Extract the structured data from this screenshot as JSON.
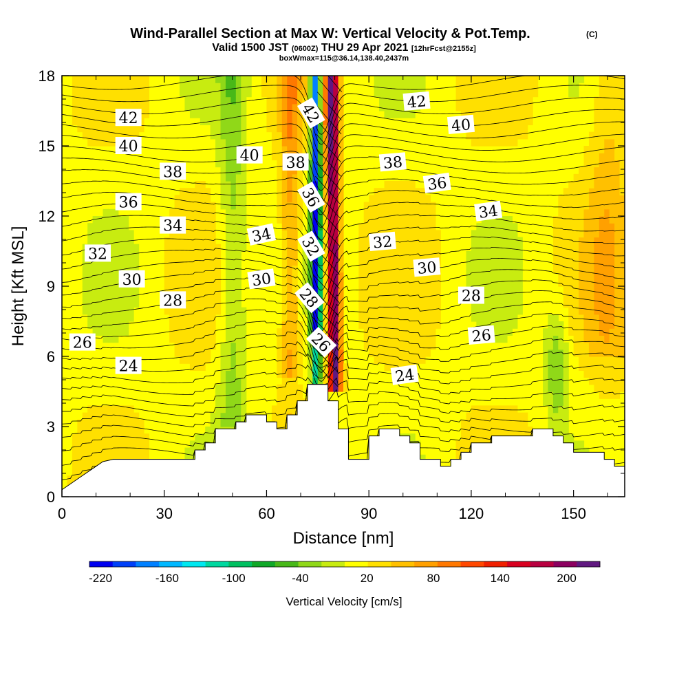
{
  "chart_data": {
    "type": "heatmap",
    "title": "Wind-Parallel Section at Max W: Vertical Velocity & Pot.Temp.",
    "title_mark": "(C)",
    "subtitle": {
      "valid_prefix": "Valid 1500 JST",
      "utc": "(0600Z)",
      "valid_suffix": "THU 29 Apr 2021",
      "forecast": "[12hrFcst@2155z]"
    },
    "subtitle2": "boxWmax=115@36.14,138.40,2437m",
    "xlabel": "Distance [nm]",
    "ylabel": "Height [Kft MSL]",
    "xlim": [
      0,
      165
    ],
    "ylim": [
      0,
      18
    ],
    "xticks": [
      "0",
      "30",
      "60",
      "90",
      "120",
      "150"
    ],
    "yticks": [
      "0",
      "3",
      "6",
      "9",
      "12",
      "15",
      "18"
    ],
    "colorbar": {
      "label": "Vertical Velocity [cm/s]",
      "tick_labels": [
        "-220",
        "-160",
        "-100",
        "-40",
        "20",
        "80",
        "140",
        "200"
      ],
      "tick_values": [
        -220,
        -160,
        -100,
        -40,
        20,
        80,
        140,
        200
      ],
      "range": [
        -230,
        230
      ],
      "colors": [
        "#0000f0",
        "#0040f8",
        "#0080ff",
        "#00b8ff",
        "#00e8f0",
        "#00d8a0",
        "#00c060",
        "#10a828",
        "#48b818",
        "#90d818",
        "#c8ec10",
        "#ffff00",
        "#ffe000",
        "#ffc000",
        "#ffa000",
        "#ff7800",
        "#ff4800",
        "#f02000",
        "#d80020",
        "#b80040",
        "#8c0060",
        "#601880"
      ]
    },
    "potential_temperature_isentropes": [
      24,
      26,
      28,
      30,
      32,
      34,
      36,
      38,
      40,
      42
    ],
    "contour_labels": [
      {
        "text": "42",
        "x": 19.5,
        "y": 16.2,
        "angle": 0
      },
      {
        "text": "40",
        "x": 19.5,
        "y": 15.0,
        "angle": 0
      },
      {
        "text": "38",
        "x": 32.5,
        "y": 13.9,
        "angle": 0
      },
      {
        "text": "36",
        "x": 19.5,
        "y": 12.6,
        "angle": 0
      },
      {
        "text": "34",
        "x": 32.5,
        "y": 11.6,
        "angle": 0
      },
      {
        "text": "32",
        "x": 10.5,
        "y": 10.4,
        "angle": 0
      },
      {
        "text": "30",
        "x": 20.5,
        "y": 9.3,
        "angle": 0
      },
      {
        "text": "28",
        "x": 32.5,
        "y": 8.4,
        "angle": 0
      },
      {
        "text": "26",
        "x": 6.0,
        "y": 6.6,
        "angle": 0
      },
      {
        "text": "24",
        "x": 19.5,
        "y": 5.6,
        "angle": 0
      },
      {
        "text": "40",
        "x": 55.0,
        "y": 14.6,
        "angle": 0
      },
      {
        "text": "38",
        "x": 68.5,
        "y": 14.3,
        "angle": 0
      },
      {
        "text": "34",
        "x": 58.5,
        "y": 11.2,
        "angle": -12
      },
      {
        "text": "30",
        "x": 58.5,
        "y": 9.3,
        "angle": -8
      },
      {
        "text": "42",
        "x": 73.0,
        "y": 16.4,
        "angle": 60
      },
      {
        "text": "36",
        "x": 73.0,
        "y": 12.8,
        "angle": 60
      },
      {
        "text": "32",
        "x": 73.0,
        "y": 10.7,
        "angle": 60
      },
      {
        "text": "28",
        "x": 72.5,
        "y": 8.5,
        "angle": 50
      },
      {
        "text": "26",
        "x": 76.0,
        "y": 6.6,
        "angle": 45
      },
      {
        "text": "42",
        "x": 104.0,
        "y": 16.9,
        "angle": -5
      },
      {
        "text": "40",
        "x": 117.0,
        "y": 15.9,
        "angle": -5
      },
      {
        "text": "38",
        "x": 97.0,
        "y": 14.3,
        "angle": -5
      },
      {
        "text": "36",
        "x": 110.0,
        "y": 13.4,
        "angle": -8
      },
      {
        "text": "34",
        "x": 125.0,
        "y": 12.2,
        "angle": -8
      },
      {
        "text": "32",
        "x": 94.0,
        "y": 10.9,
        "angle": -5
      },
      {
        "text": "30",
        "x": 107.0,
        "y": 9.8,
        "angle": -5
      },
      {
        "text": "28",
        "x": 120.0,
        "y": 8.6,
        "angle": 0
      },
      {
        "text": "26",
        "x": 123.0,
        "y": 6.9,
        "angle": -5
      },
      {
        "text": "24",
        "x": 100.5,
        "y": 5.2,
        "angle": -8
      }
    ],
    "terrain": [
      [
        0,
        0.3
      ],
      [
        3,
        0.6
      ],
      [
        6,
        0.9
      ],
      [
        9,
        1.2
      ],
      [
        12,
        1.5
      ],
      [
        15,
        1.6
      ],
      [
        22,
        1.6
      ],
      [
        39,
        1.6
      ],
      [
        39,
        2.0
      ],
      [
        42,
        2.0
      ],
      [
        42,
        2.3
      ],
      [
        45,
        2.3
      ],
      [
        45,
        2.9
      ],
      [
        51,
        2.9
      ],
      [
        51,
        3.2
      ],
      [
        54,
        3.2
      ],
      [
        54,
        3.5
      ],
      [
        60,
        3.5
      ],
      [
        60,
        3.2
      ],
      [
        63,
        3.2
      ],
      [
        63,
        2.9
      ],
      [
        66,
        2.9
      ],
      [
        66,
        3.5
      ],
      [
        69,
        3.5
      ],
      [
        69,
        4.1
      ],
      [
        72,
        4.1
      ],
      [
        72,
        4.8
      ],
      [
        78,
        4.8
      ],
      [
        78,
        4.1
      ],
      [
        81,
        4.1
      ],
      [
        81,
        2.9
      ],
      [
        84,
        2.9
      ],
      [
        84,
        1.6
      ],
      [
        90,
        1.6
      ],
      [
        90,
        2.6
      ],
      [
        93,
        2.6
      ],
      [
        93,
        2.9
      ],
      [
        99,
        2.9
      ],
      [
        99,
        2.6
      ],
      [
        102,
        2.6
      ],
      [
        102,
        2.3
      ],
      [
        105,
        2.3
      ],
      [
        105,
        1.6
      ],
      [
        111,
        1.6
      ],
      [
        111,
        1.3
      ],
      [
        114,
        1.3
      ],
      [
        114,
        1.6
      ],
      [
        117,
        1.6
      ],
      [
        117,
        1.9
      ],
      [
        120,
        1.9
      ],
      [
        120,
        2.3
      ],
      [
        126,
        2.3
      ],
      [
        126,
        2.6
      ],
      [
        138,
        2.6
      ],
      [
        138,
        2.9
      ],
      [
        144,
        2.9
      ],
      [
        144,
        2.6
      ],
      [
        147,
        2.6
      ],
      [
        147,
        2.3
      ],
      [
        150,
        2.3
      ],
      [
        150,
        1.9
      ],
      [
        159,
        1.9
      ],
      [
        159,
        1.6
      ],
      [
        162,
        1.6
      ],
      [
        162,
        1.3
      ],
      [
        165,
        1.3
      ]
    ]
  }
}
